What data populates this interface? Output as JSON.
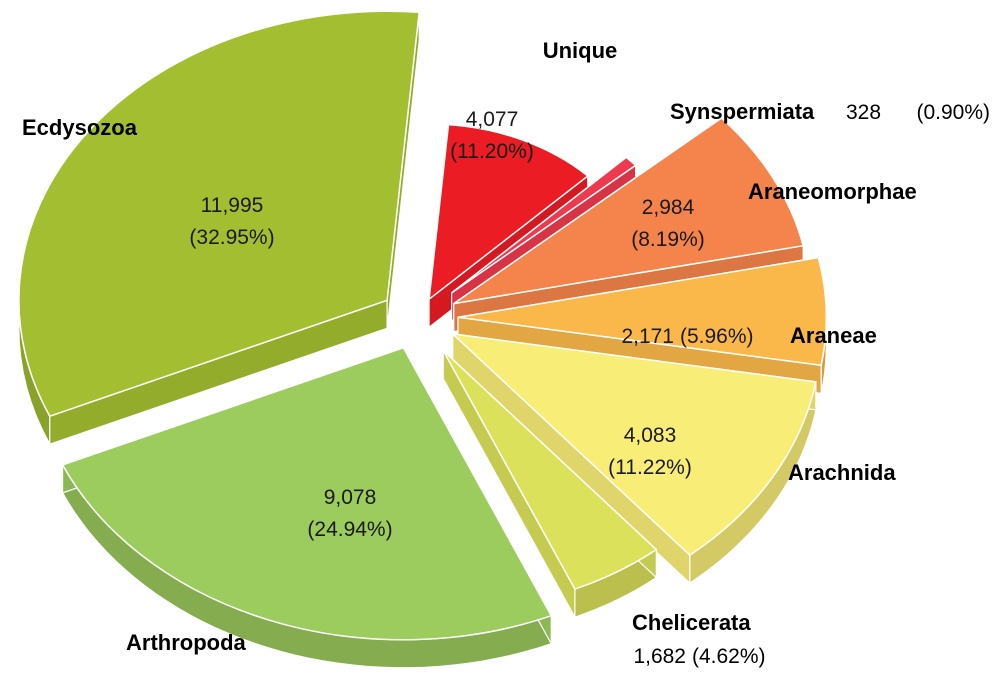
{
  "chart_data": {
    "type": "pie",
    "style": "3d-exploded",
    "slices": [
      {
        "category": "Unique",
        "value": 4077,
        "value_label": "4,077",
        "percent_label": "(11.20%)",
        "color": "#ec1c24"
      },
      {
        "category": "Synspermiata",
        "value": 328,
        "value_label": "328",
        "percent_label": "(0.90%)",
        "color": "#ef3a4e"
      },
      {
        "category": "Araneomorphae",
        "value": 2984,
        "value_label": "2,984",
        "percent_label": "(8.19%)",
        "color": "#f4844c"
      },
      {
        "category": "Araneae",
        "value": 2171,
        "value_label": "2,171",
        "percent_label": "(5.96%)",
        "color": "#fbb84a"
      },
      {
        "category": "Arachnida",
        "value": 4083,
        "value_label": "4,083",
        "percent_label": "(11.22%)",
        "color": "#f8ed77"
      },
      {
        "category": "Chelicerata",
        "value": 1682,
        "value_label": "1,682",
        "percent_label": "(4.62%)",
        "color": "#dbe15a"
      },
      {
        "category": "Arthropoda",
        "value": 9078,
        "value_label": "9,078",
        "percent_label": "(24.94%)",
        "color": "#9ccb5e"
      },
      {
        "category": "Ecdysozoa",
        "value": 11995,
        "value_label": "11,995",
        "percent_label": "(32.95%)",
        "color": "#a3bf31"
      }
    ]
  }
}
